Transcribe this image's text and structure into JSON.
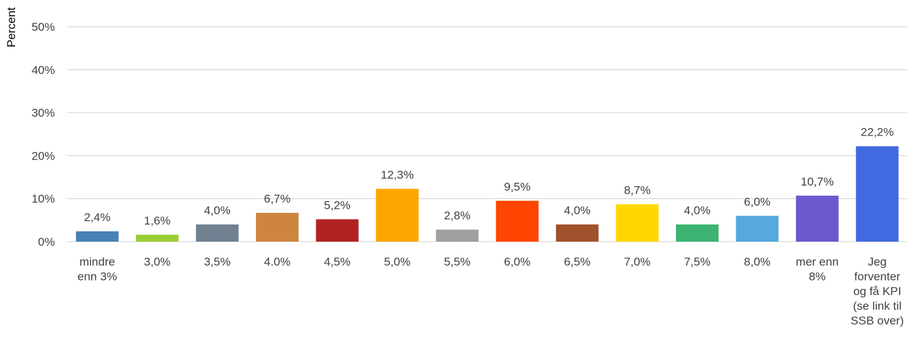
{
  "chart_data": {
    "type": "bar",
    "ylabel": "Percent",
    "ylim": [
      0,
      50
    ],
    "yticks": [
      0,
      10,
      20,
      30,
      40,
      50
    ],
    "ytick_suffix": "%",
    "grid": true,
    "legend": "none",
    "categories": [
      [
        "mindre",
        "enn 3%"
      ],
      [
        "3,0%"
      ],
      [
        "3,5%"
      ],
      [
        "4.0%"
      ],
      [
        "4,5%"
      ],
      [
        "5,0%"
      ],
      [
        "5,5%"
      ],
      [
        "6,0%"
      ],
      [
        "6,5%"
      ],
      [
        "7,0%"
      ],
      [
        "7,5%"
      ],
      [
        "8,0%"
      ],
      [
        "mer enn",
        "8%"
      ],
      [
        "Jeg",
        "forventer",
        "og få KPI",
        "(se link til",
        "SSB over)"
      ]
    ],
    "values": [
      2.4,
      1.6,
      4.0,
      6.7,
      5.2,
      12.3,
      2.8,
      9.5,
      4.0,
      8.7,
      4.0,
      6.0,
      10.7,
      22.2
    ],
    "data_labels": [
      "2,4%",
      "1,6%",
      "4,0%",
      "6,7%",
      "5,2%",
      "12,3%",
      "2,8%",
      "9,5%",
      "4,0%",
      "8,7%",
      "4,0%",
      "6,0%",
      "10,7%",
      "22,2%"
    ],
    "colors": [
      "#4682b4",
      "#9acd32",
      "#708090",
      "#cd853f",
      "#b22222",
      "#ffa500",
      "#a0a0a0",
      "#ff4500",
      "#a0522d",
      "#ffd700",
      "#3cb371",
      "#56a8dd",
      "#6a5acd",
      "#4169e1"
    ]
  }
}
